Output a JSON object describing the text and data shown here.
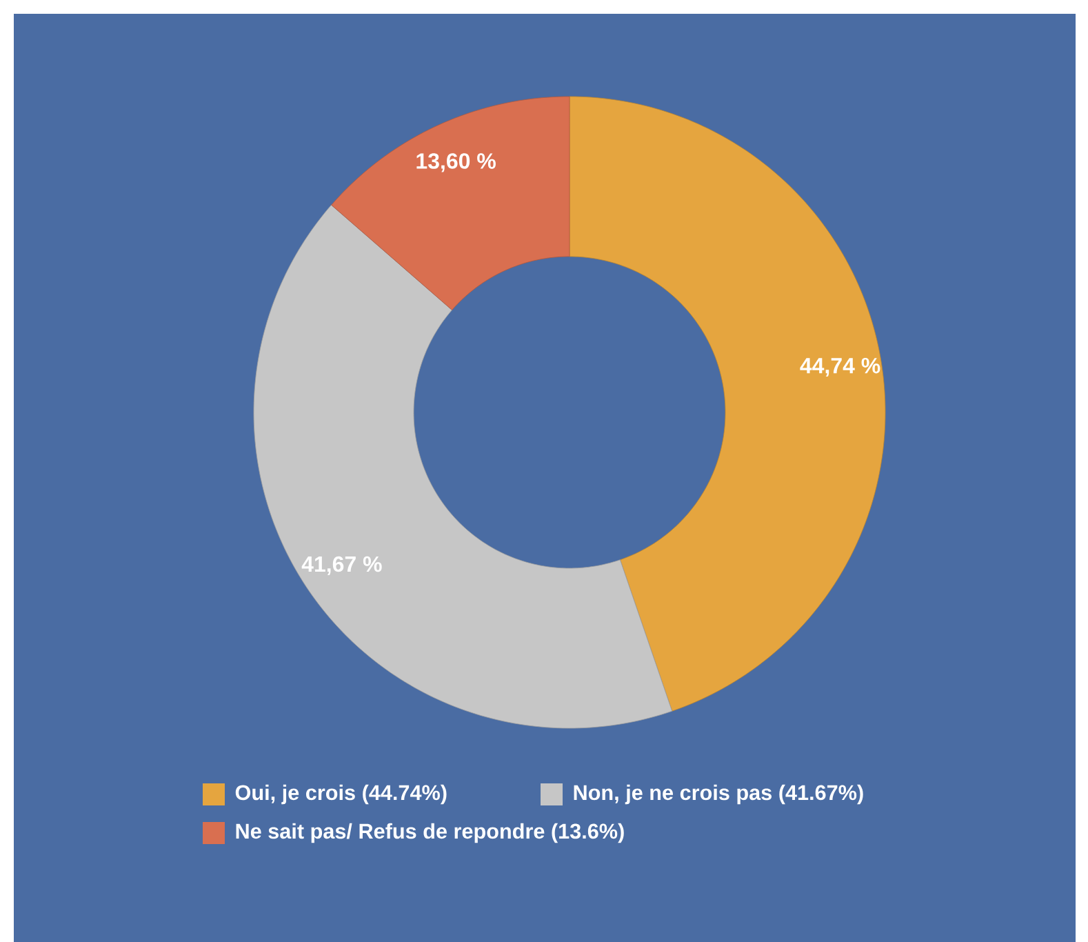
{
  "chart_data": {
    "type": "donut",
    "categories": [
      "Oui, je crois (44.74%)",
      "Non, je ne crois pas (41.67%)",
      "Ne sait pas/ Refus de repondre (13.6%)"
    ],
    "values": [
      44.74,
      41.67,
      13.6
    ],
    "colors": [
      "#e5a53f",
      "#c6c6c6",
      "#d96f50"
    ],
    "value_labels": [
      "44,74 %",
      "41,67 %",
      "13,60 %"
    ],
    "legend": "bottom"
  }
}
